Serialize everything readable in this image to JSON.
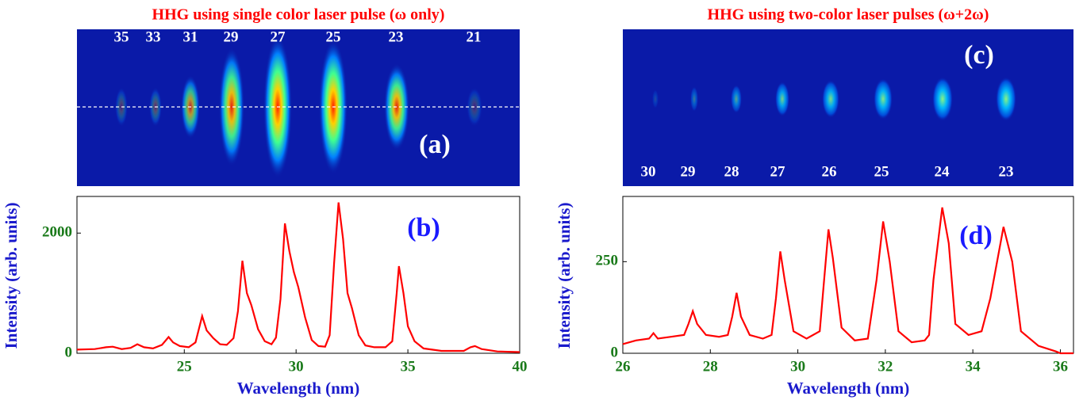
{
  "chart_data": [
    {
      "type": "line",
      "title": "HHG using single color laser pulse (ω only)",
      "image": {
        "panel_label": "(a)",
        "orders": [
          35,
          33,
          31,
          29,
          27,
          25,
          23,
          21
        ]
      },
      "panel_label": "(b)",
      "x_label": "Wavelength (nm)",
      "y_label": "Intensity (arb. units)",
      "xlim": [
        20.2,
        40
      ],
      "ylim": [
        0,
        2610
      ],
      "xticks": [
        25,
        30,
        35,
        40
      ],
      "yticks": [
        0,
        2000
      ],
      "x": [
        20.2,
        21.0,
        21.5,
        21.8,
        22.2,
        22.6,
        22.9,
        23.2,
        23.6,
        24.0,
        24.3,
        24.5,
        24.8,
        25.2,
        25.5,
        25.8,
        26.0,
        26.3,
        26.6,
        26.9,
        27.2,
        27.4,
        27.6,
        27.8,
        28.0,
        28.3,
        28.6,
        28.9,
        29.1,
        29.3,
        29.5,
        29.7,
        29.9,
        30.1,
        30.4,
        30.7,
        31.0,
        31.3,
        31.5,
        31.7,
        31.9,
        32.1,
        32.3,
        32.5,
        32.8,
        33.1,
        33.5,
        34.0,
        34.3,
        34.5,
        34.6,
        34.8,
        35.0,
        35.3,
        35.7,
        36.5,
        37.5,
        37.8,
        38.0,
        38.3,
        39.0,
        40.0
      ],
      "series": [
        {
          "color": "#ff0000",
          "values": [
            60,
            70,
            100,
            110,
            70,
            90,
            150,
            100,
            80,
            140,
            270,
            180,
            120,
            100,
            180,
            620,
            380,
            250,
            150,
            140,
            250,
            700,
            1540,
            1000,
            800,
            400,
            200,
            150,
            260,
            900,
            2160,
            1700,
            1350,
            1100,
            600,
            220,
            120,
            110,
            300,
            1500,
            2510,
            1900,
            1000,
            750,
            300,
            130,
            100,
            100,
            200,
            1000,
            1450,
            1000,
            450,
            200,
            80,
            40,
            40,
            100,
            120,
            70,
            30,
            20
          ]
        }
      ]
    },
    {
      "type": "line",
      "title": "HHG using two-color laser pulses (ω+2ω)",
      "image": {
        "panel_label": "(c)",
        "orders": [
          30,
          29,
          28,
          27,
          26,
          25,
          24,
          23
        ]
      },
      "panel_label": "(d)",
      "x_label": "Wavelength (nm)",
      "y_label": "Intensity (arb. units)",
      "xlim": [
        26,
        36.3
      ],
      "ylim": [
        0,
        428
      ],
      "xticks": [
        26,
        28,
        30,
        32,
        34,
        36
      ],
      "yticks": [
        0,
        250
      ],
      "x": [
        26.0,
        26.3,
        26.6,
        26.7,
        26.8,
        27.1,
        27.4,
        27.5,
        27.6,
        27.7,
        27.9,
        28.2,
        28.4,
        28.5,
        28.6,
        28.7,
        28.9,
        29.2,
        29.4,
        29.5,
        29.6,
        29.7,
        29.9,
        30.2,
        30.5,
        30.6,
        30.7,
        30.8,
        31.0,
        31.3,
        31.6,
        31.8,
        31.95,
        32.1,
        32.3,
        32.6,
        32.9,
        33.0,
        33.1,
        33.3,
        33.45,
        33.6,
        33.9,
        34.2,
        34.4,
        34.7,
        34.9,
        35.1,
        35.5,
        35.9,
        36.0,
        36.3
      ],
      "series": [
        {
          "color": "#ff0000",
          "values": [
            25,
            35,
            40,
            55,
            40,
            45,
            50,
            80,
            115,
            80,
            50,
            45,
            50,
            100,
            165,
            100,
            50,
            40,
            50,
            150,
            278,
            200,
            60,
            40,
            60,
            200,
            338,
            260,
            70,
            35,
            40,
            200,
            360,
            250,
            60,
            30,
            35,
            50,
            200,
            398,
            300,
            80,
            50,
            60,
            150,
            345,
            250,
            60,
            20,
            5,
            0,
            0
          ]
        }
      ]
    }
  ]
}
